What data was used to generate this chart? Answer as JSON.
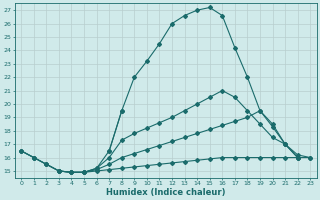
{
  "xlabel": "Humidex (Indice chaleur)",
  "x_all": [
    0,
    1,
    2,
    3,
    4,
    5,
    6,
    7,
    8,
    9,
    10,
    11,
    12,
    13,
    14,
    15,
    16,
    17,
    18,
    19,
    20,
    21,
    22,
    23
  ],
  "line_arc": {
    "x": [
      0,
      1,
      2,
      3,
      4,
      5,
      6,
      7,
      8,
      9,
      10,
      11,
      12,
      13,
      14,
      15,
      16,
      17,
      18,
      19,
      20,
      21,
      22
    ],
    "y": [
      16.5,
      16.0,
      15.5,
      15.0,
      14.9,
      14.9,
      15.2,
      16.5,
      19.5,
      22.0,
      23.2,
      24.5,
      26.0,
      26.6,
      27.0,
      27.2,
      26.6,
      24.2,
      22.0,
      19.5,
      18.5,
      17.0,
      16.0
    ]
  },
  "line_mid": {
    "x": [
      0,
      1,
      2,
      3,
      4,
      5,
      6,
      7,
      8,
      9,
      10,
      11,
      12,
      13,
      14,
      15,
      16,
      17,
      18,
      19,
      20,
      21,
      22
    ],
    "y": [
      16.5,
      16.0,
      15.5,
      15.0,
      14.9,
      14.9,
      15.2,
      16.0,
      17.3,
      17.8,
      18.2,
      18.6,
      19.0,
      19.5,
      20.0,
      20.5,
      21.0,
      20.5,
      19.5,
      18.5,
      17.5,
      17.0,
      16.0
    ]
  },
  "line_low": {
    "x": [
      0,
      1,
      2,
      3,
      4,
      5,
      6,
      7,
      8,
      9,
      10,
      11,
      12,
      13,
      14,
      15,
      16,
      17,
      18,
      19,
      20,
      21,
      22,
      23
    ],
    "y": [
      16.5,
      16.0,
      15.5,
      15.0,
      14.9,
      14.9,
      15.1,
      15.5,
      16.0,
      16.3,
      16.6,
      16.9,
      17.2,
      17.5,
      17.8,
      18.1,
      18.4,
      18.7,
      19.0,
      19.5,
      18.3,
      17.0,
      16.2,
      16.0
    ]
  },
  "line_flat": {
    "x": [
      3,
      4,
      5,
      6,
      7,
      8,
      9,
      10,
      11,
      12,
      13,
      14,
      15,
      16,
      17,
      18,
      19,
      20,
      21,
      22,
      23
    ],
    "y": [
      15.0,
      14.9,
      14.9,
      15.0,
      15.1,
      15.2,
      15.3,
      15.4,
      15.5,
      15.6,
      15.7,
      15.8,
      15.9,
      16.0,
      16.0,
      16.0,
      16.0,
      16.0,
      16.0,
      16.0,
      16.0
    ]
  },
  "spike": {
    "x": [
      7,
      8
    ],
    "y": [
      16.5,
      19.5
    ]
  },
  "color": "#1a6b6b",
  "bg_color": "#d0eaea",
  "grid_color": "#b8cece",
  "ylim": [
    14.5,
    27.5
  ],
  "xlim": [
    -0.5,
    23.5
  ],
  "yticks": [
    15,
    16,
    17,
    18,
    19,
    20,
    21,
    22,
    23,
    24,
    25,
    26,
    27
  ],
  "xticks": [
    0,
    1,
    2,
    3,
    4,
    5,
    6,
    7,
    8,
    9,
    10,
    11,
    12,
    13,
    14,
    15,
    16,
    17,
    18,
    19,
    20,
    21,
    22,
    23
  ]
}
